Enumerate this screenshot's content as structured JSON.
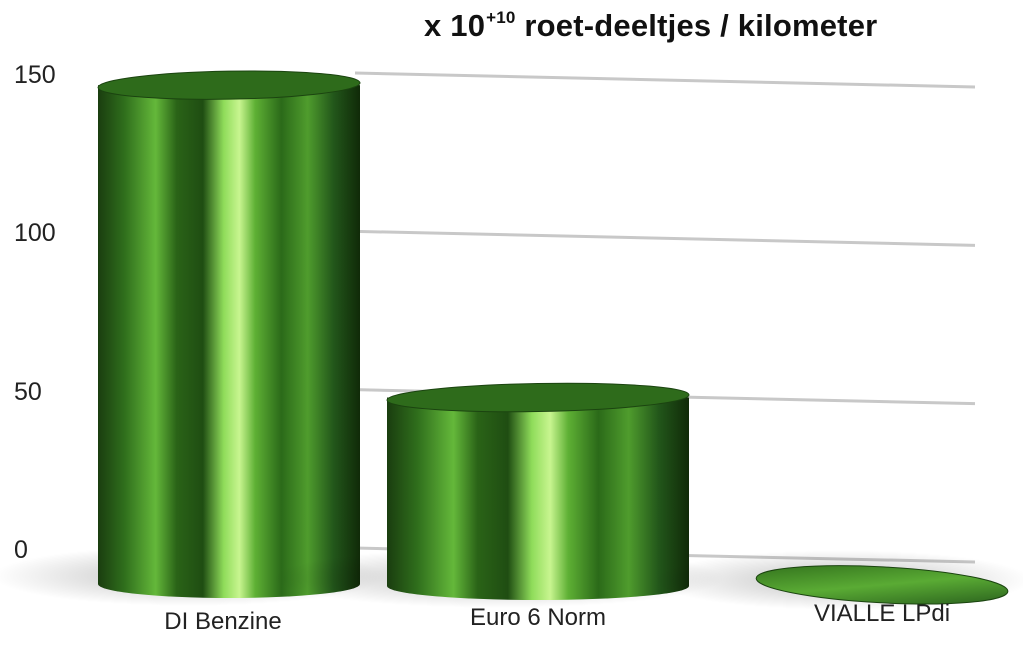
{
  "chart_data": {
    "type": "bar",
    "title_prefix": "x 10",
    "title_exponent": "+10",
    "title_suffix": " roet-deeltjes / kilometer",
    "categories": [
      "DI Benzine",
      "Euro 6 Norm",
      "VIALLE LPdi"
    ],
    "values": [
      155,
      57,
      1
    ],
    "ylim": [
      0,
      160
    ],
    "yticks": [
      0,
      50,
      100,
      150
    ],
    "grid": true,
    "style": "3d-cylinder",
    "colors": {
      "bar_dark": "#1f4a12",
      "bar_mid": "#3f8a25",
      "bar_light": "#b8f07a",
      "grid": "#c8c8c8"
    }
  }
}
